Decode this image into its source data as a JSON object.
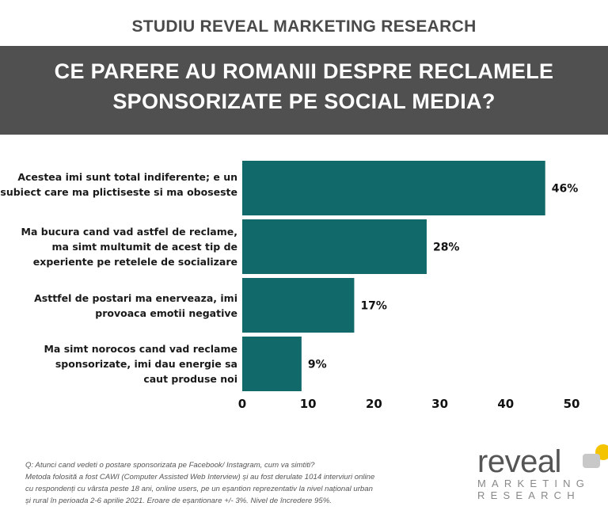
{
  "header": {
    "top_title": "STUDIU REVEAL MARKETING RESEARCH",
    "title_lines": [
      "CE PARERE AU ROMANII DESPRE RECLAMELE",
      "SPONSORIZATE PE SOCIAL MEDIA?"
    ]
  },
  "chart_data": {
    "type": "bar",
    "orientation": "horizontal",
    "categories": [
      [
        "Acestea imi sunt total indiferente; e un",
        "subiect care ma plictiseste si ma oboseste"
      ],
      [
        "Ma bucura cand vad astfel de reclame,",
        "ma simt multumit de acest tip de",
        "experiente pe retelele de socializare"
      ],
      [
        "Asttfel de postari ma enerveaza, imi",
        "provoaca emotii negative"
      ],
      [
        "Ma simt norocos cand vad reclame",
        "sponsorizate, imi dau energie sa",
        "caut produse noi"
      ]
    ],
    "values": [
      46,
      28,
      17,
      9
    ],
    "data_labels": [
      "46%",
      "28%",
      "17%",
      "9%"
    ],
    "xlim": [
      0,
      50
    ],
    "x_ticks": [
      "0",
      "10",
      "20",
      "30",
      "40",
      "50"
    ],
    "grid": false,
    "bar_color": "#12696a"
  },
  "footer": {
    "lines": [
      "Q: Atunci cand vedeti o postare sponsorizata pe Facebook/ Instagram, cum va simtiti?",
      "Metoda folosită a fost CAWI (Computer Assisted Web Interview) și au fost derulate 1014 interviuri online",
      "cu respondenți cu vârsta peste 18 ani, online users, pe un eșantion reprezentativ la nivel național urban",
      "și rural în perioada 2-6 aprilie 2021. Eroare de eșantionare +/- 3%. Nivel de încredere 95%."
    ]
  },
  "logo": {
    "word": "reveal",
    "line1": "MARKETING",
    "line2": "RESEARCH",
    "accent": "#f5c400"
  }
}
